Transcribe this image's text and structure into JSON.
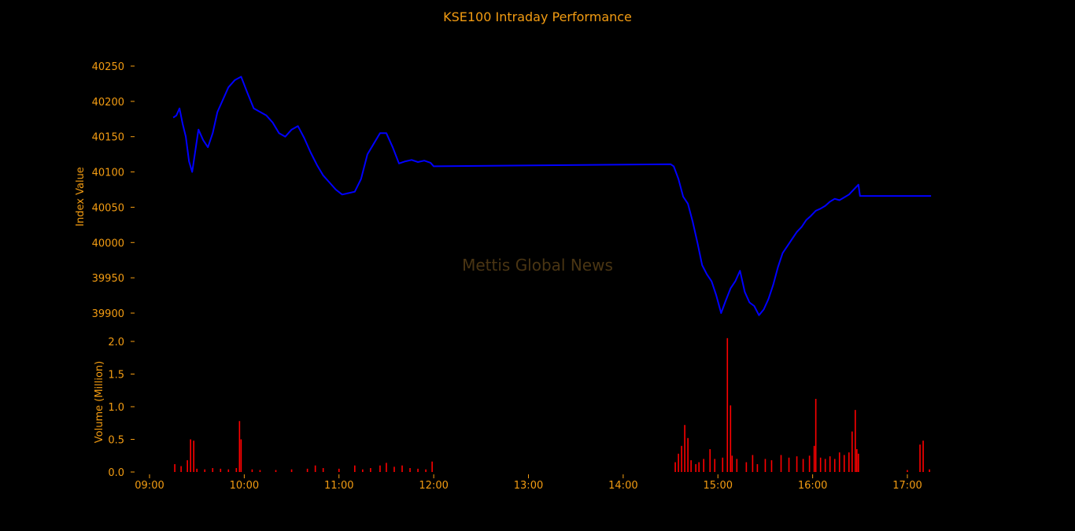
{
  "chart_data": [
    {
      "type": "line",
      "title": "KSE100 Intraday Performance",
      "xlabel": "",
      "ylabel": "Index Value",
      "ylim": [
        39880,
        40265
      ],
      "yticks": [
        "40250",
        "40200",
        "40150",
        "40100",
        "40050",
        "40000",
        "39950",
        "39900"
      ],
      "watermark": "Mettis Global News",
      "grid": false,
      "color": "#0000ff",
      "series": [
        {
          "x": [
            "09:15",
            "09:17",
            "09:19",
            "09:21",
            "09:23",
            "09:25",
            "09:27",
            "09:29",
            "09:31",
            "09:34",
            "09:37",
            "09:40",
            "09:43",
            "09:46",
            "09:50",
            "09:54",
            "09:58",
            "10:02",
            "10:06",
            "10:10",
            "10:14",
            "10:18",
            "10:22",
            "10:26",
            "10:30",
            "10:34",
            "10:38",
            "10:42",
            "10:46",
            "10:50",
            "10:54",
            "10:58",
            "11:02",
            "11:06",
            "11:10",
            "11:14",
            "11:18",
            "11:22",
            "11:26",
            "11:30",
            "11:34",
            "11:38",
            "11:42",
            "11:46",
            "11:50",
            "11:54",
            "11:58",
            "12:00",
            "14:30",
            "14:32",
            "14:35",
            "14:38",
            "14:41",
            "14:44",
            "14:47",
            "14:50",
            "14:53",
            "14:56",
            "14:59",
            "15:02",
            "15:05",
            "15:08",
            "15:11",
            "15:14",
            "15:17",
            "15:20",
            "15:23",
            "15:26",
            "15:29",
            "15:32",
            "15:35",
            "15:38",
            "15:41",
            "15:44",
            "15:47",
            "15:50",
            "15:53",
            "15:56",
            "15:59",
            "16:02",
            "16:05",
            "16:08",
            "16:11",
            "16:14",
            "16:17",
            "16:20",
            "16:23",
            "16:26",
            "16:29",
            "16:30",
            "17:15"
          ],
          "values": [
            40177,
            40180,
            40190,
            40168,
            40150,
            40115,
            40100,
            40130,
            40160,
            40145,
            40135,
            40155,
            40185,
            40200,
            40220,
            40230,
            40235,
            40212,
            40190,
            40185,
            40180,
            40170,
            40155,
            40150,
            40160,
            40165,
            40148,
            40128,
            40110,
            40095,
            40085,
            40075,
            40068,
            40070,
            40072,
            40090,
            40125,
            40140,
            40155,
            40155,
            40135,
            40112,
            40115,
            40117,
            40114,
            40116,
            40113,
            40108,
            40111,
            40108,
            40090,
            40065,
            40055,
            40030,
            40000,
            39968,
            39955,
            39945,
            39925,
            39900,
            39918,
            39935,
            39945,
            39960,
            39930,
            39915,
            39910,
            39897,
            39905,
            39920,
            39940,
            39965,
            39985,
            39995,
            40005,
            40015,
            40022,
            40032,
            40038,
            40045,
            40048,
            40052,
            40058,
            40062,
            40060,
            40064,
            40068,
            40075,
            40082,
            40066,
            40066
          ]
        }
      ]
    },
    {
      "type": "bar",
      "title": "",
      "xlabel": "",
      "ylabel": "Volume (Million)",
      "ylim": [
        0,
        2.1
      ],
      "yticks": [
        "2.0",
        "1.5",
        "1.0",
        "0.5",
        "0.0"
      ],
      "xticks": [
        "09:00",
        "10:00",
        "11:00",
        "12:00",
        "13:00",
        "14:00",
        "15:00",
        "16:00",
        "17:00"
      ],
      "color": "#ff0000",
      "series": [
        {
          "x": [
            "09:16",
            "09:20",
            "09:24",
            "09:26",
            "09:28",
            "09:30",
            "09:35",
            "09:40",
            "09:45",
            "09:50",
            "09:55",
            "09:57",
            "09:58",
            "10:05",
            "10:10",
            "10:20",
            "10:30",
            "10:40",
            "10:45",
            "10:50",
            "11:00",
            "11:10",
            "11:15",
            "11:20",
            "11:26",
            "11:30",
            "11:35",
            "11:40",
            "11:45",
            "11:50",
            "11:55",
            "11:59",
            "14:33",
            "14:35",
            "14:37",
            "14:39",
            "14:41",
            "14:43",
            "14:46",
            "14:48",
            "14:51",
            "14:55",
            "14:58",
            "15:03",
            "15:06",
            "15:08",
            "15:09",
            "15:12",
            "15:18",
            "15:22",
            "15:25",
            "15:30",
            "15:34",
            "15:40",
            "15:45",
            "15:50",
            "15:54",
            "15:58",
            "16:01",
            "16:02",
            "16:05",
            "16:08",
            "16:11",
            "16:14",
            "16:17",
            "16:20",
            "16:23",
            "16:25",
            "16:27",
            "16:28",
            "16:29",
            "17:00",
            "17:08",
            "17:10",
            "17:14"
          ],
          "values": [
            0.12,
            0.09,
            0.18,
            0.5,
            0.48,
            0.05,
            0.04,
            0.06,
            0.05,
            0.04,
            0.06,
            0.78,
            0.5,
            0.04,
            0.03,
            0.03,
            0.04,
            0.05,
            0.1,
            0.06,
            0.05,
            0.1,
            0.04,
            0.06,
            0.1,
            0.14,
            0.08,
            0.1,
            0.06,
            0.05,
            0.04,
            0.16,
            0.15,
            0.28,
            0.4,
            0.72,
            0.52,
            0.18,
            0.12,
            0.15,
            0.2,
            0.35,
            0.2,
            0.22,
            2.05,
            1.02,
            0.25,
            0.2,
            0.15,
            0.26,
            0.12,
            0.2,
            0.18,
            0.26,
            0.22,
            0.24,
            0.2,
            0.25,
            0.4,
            1.12,
            0.22,
            0.2,
            0.24,
            0.2,
            0.3,
            0.26,
            0.3,
            0.62,
            0.95,
            0.35,
            0.28,
            0.03,
            0.42,
            0.48,
            0.04
          ]
        }
      ]
    }
  ]
}
